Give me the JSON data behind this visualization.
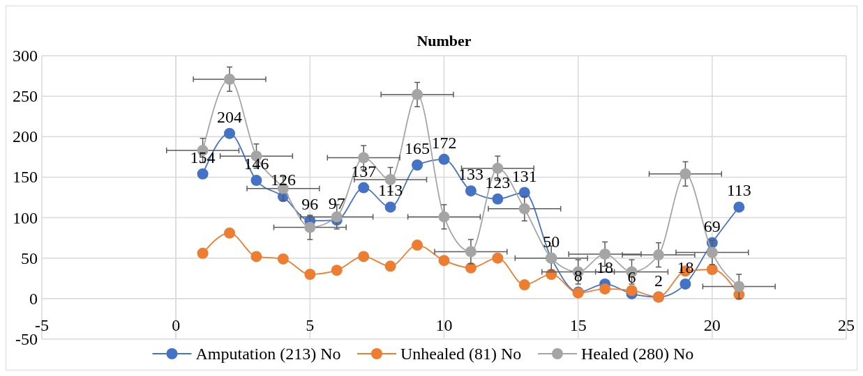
{
  "chart_data": {
    "type": "line",
    "title": "Number",
    "x": [
      1,
      2,
      3,
      4,
      5,
      6,
      7,
      8,
      9,
      10,
      11,
      12,
      13,
      14,
      15,
      16,
      17,
      18,
      19,
      20,
      21
    ],
    "xlim": [
      -5,
      25
    ],
    "xticks": [
      -5,
      0,
      5,
      10,
      15,
      20,
      25
    ],
    "ylim": [
      -50,
      300
    ],
    "yticks": [
      -50,
      0,
      50,
      100,
      150,
      200,
      250,
      300
    ],
    "grid": true,
    "legend": "bottom",
    "marker": "circle",
    "line_style": "solid",
    "series": [
      {
        "name": "Amputation (213) No",
        "color": "#4472c4",
        "values": [
          154,
          204,
          146,
          126,
          96,
          97,
          137,
          113,
          165,
          172,
          133,
          123,
          131,
          50,
          8,
          18,
          6,
          2,
          18,
          69,
          113
        ],
        "value_labels": [
          "154",
          "204",
          "146",
          "126",
          "96",
          "97",
          "137",
          "113",
          "165",
          "172",
          "133",
          "123",
          "131",
          "50",
          "8",
          "18",
          "6",
          "2",
          "18",
          "69",
          "113"
        ]
      },
      {
        "name": "Unhealed (81) No",
        "color": "#ed7d31",
        "values": [
          56,
          81,
          52,
          49,
          30,
          35,
          52,
          40,
          66,
          47,
          38,
          50,
          17,
          30,
          7,
          12,
          10,
          2,
          34,
          36,
          5
        ]
      },
      {
        "name": "Healed (280) No",
        "color": "#a5a5a5",
        "values": [
          183,
          271,
          176,
          136,
          88,
          101,
          174,
          147,
          252,
          101,
          58,
          161,
          111,
          50,
          33,
          55,
          33,
          54,
          154,
          57,
          15
        ],
        "errors": [
          15,
          15,
          15,
          15,
          15,
          15,
          15,
          15,
          15,
          15,
          15,
          15,
          15,
          15,
          15,
          15,
          15,
          15,
          15,
          15,
          15
        ],
        "xerrors": [
          1.35,
          1.35,
          1.35,
          1.35,
          1.35,
          1.35,
          1.35,
          1.35,
          1.35,
          1.35,
          1.35,
          1.35,
          1.35,
          1.35,
          1.35,
          1.35,
          1.35,
          1.35,
          1.35,
          1.35,
          1.35
        ]
      }
    ]
  }
}
